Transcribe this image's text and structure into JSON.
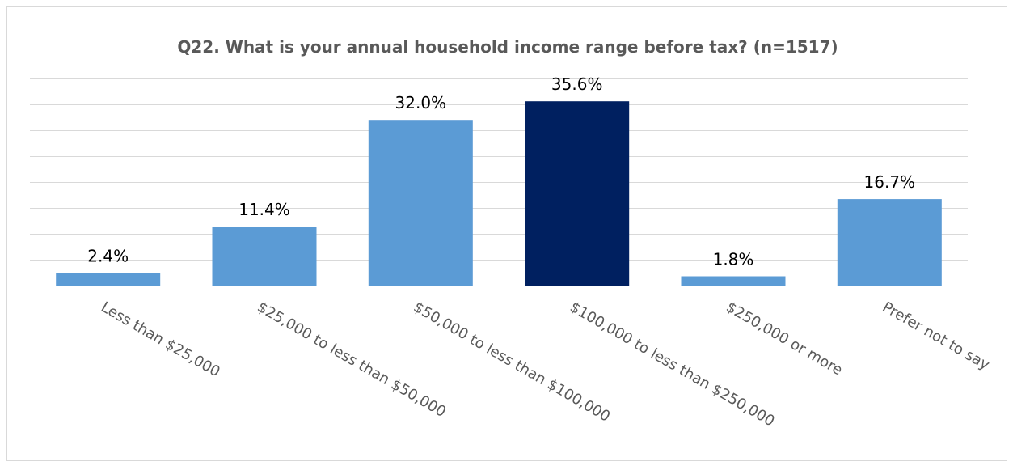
{
  "chart_data": {
    "type": "bar",
    "title": "Q22. What is your annual household income range before tax? (n=1517)",
    "xlabel": "",
    "ylabel": "",
    "categories": [
      "Less than $25,000",
      "$25,000 to less than $50,000",
      "$50,000 to less than $100,000",
      "$100,000 to less than $250,000",
      "$250,000 or more",
      "Prefer not to say"
    ],
    "values": [
      2.4,
      11.4,
      32.0,
      35.6,
      1.8,
      16.7
    ],
    "data_labels": [
      "2.4%",
      "11.4%",
      "32.0%",
      "35.6%",
      "1.8%",
      "16.7%"
    ],
    "bar_colors": [
      "#5b9bd5",
      "#5b9bd5",
      "#5b9bd5",
      "#002060",
      "#5b9bd5",
      "#5b9bd5"
    ],
    "ylim": [
      0,
      40
    ],
    "y_tick_step": 5,
    "grid": true,
    "legend": "none"
  }
}
